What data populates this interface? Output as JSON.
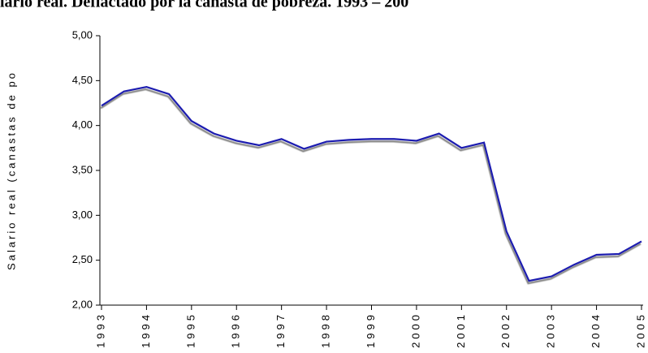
{
  "chart_data": {
    "type": "line",
    "title": "alario real. Deflactado por la canasta de pobreza. 1993 – 200",
    "y_label": "Salario real (canastas de po",
    "categories": [
      "1993",
      null,
      "1994",
      null,
      "1995",
      null,
      "1996",
      null,
      "1997",
      null,
      "1998",
      null,
      "1999",
      null,
      "2000",
      null,
      "2001",
      null,
      "2002",
      null,
      "2003",
      null,
      "2004",
      null,
      "2005"
    ],
    "series": [
      {
        "name": "Salario real",
        "color": "#1a1ab0",
        "values": [
          4.22,
          4.38,
          4.43,
          4.35,
          4.05,
          3.91,
          3.83,
          3.78,
          3.85,
          3.74,
          3.82,
          3.84,
          3.85,
          3.85,
          3.83,
          3.91,
          3.75,
          3.81,
          2.82,
          2.27,
          2.32,
          2.45,
          2.56,
          2.57,
          2.71
        ]
      }
    ],
    "ylim": [
      2,
      5
    ],
    "yticks": [
      {
        "value": 2,
        "label": "2,00"
      },
      {
        "value": 2.5,
        "label": "2,50"
      },
      {
        "value": 3,
        "label": "3,00"
      },
      {
        "value": 3.5,
        "label": "3,50"
      },
      {
        "value": 4,
        "label": "4,00"
      },
      {
        "value": 4.5,
        "label": "4,50"
      },
      {
        "value": 5,
        "label": "5,00"
      }
    ]
  }
}
